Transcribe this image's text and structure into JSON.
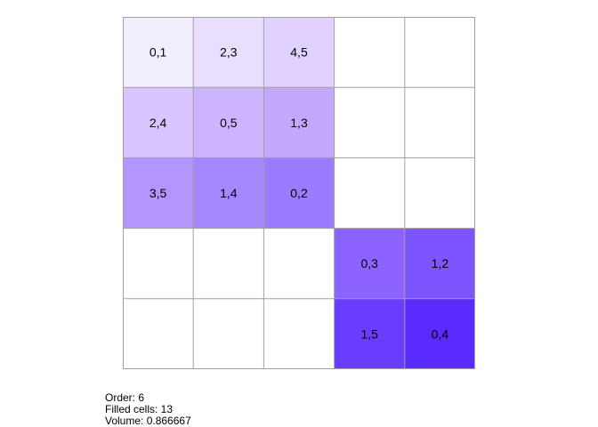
{
  "grid": {
    "rows": 5,
    "cols": 5,
    "cells": [
      {
        "row": 0,
        "col": 0,
        "label": "0,1",
        "color": "#f3eefe"
      },
      {
        "row": 0,
        "col": 1,
        "label": "2,3",
        "color": "#e9defe"
      },
      {
        "row": 0,
        "col": 2,
        "label": "4,5",
        "color": "#e0d1fe"
      },
      {
        "row": 1,
        "col": 0,
        "label": "2,4",
        "color": "#d8c4fe"
      },
      {
        "row": 1,
        "col": 1,
        "label": "0,5",
        "color": "#cdb4fe"
      },
      {
        "row": 1,
        "col": 2,
        "label": "1,3",
        "color": "#c4a8fe"
      },
      {
        "row": 2,
        "col": 0,
        "label": "3,5",
        "color": "#b296fe"
      },
      {
        "row": 2,
        "col": 1,
        "label": "1,4",
        "color": "#a587fe"
      },
      {
        "row": 2,
        "col": 2,
        "label": "0,2",
        "color": "#9b7cfe"
      },
      {
        "row": 3,
        "col": 3,
        "label": "0,3",
        "color": "#8c63fe"
      },
      {
        "row": 3,
        "col": 4,
        "label": "1,2",
        "color": "#7d55fe"
      },
      {
        "row": 4,
        "col": 3,
        "label": "1,5",
        "color": "#6a3dfe"
      },
      {
        "row": 4,
        "col": 4,
        "label": "0,4",
        "color": "#5a2bfe"
      }
    ],
    "empty_color": "#ffffff",
    "line_color": "#a0a0a0"
  },
  "info": {
    "order": "Order: 6",
    "filled": "Filled cells: 13",
    "volume": "Volume: 0.866667"
  }
}
